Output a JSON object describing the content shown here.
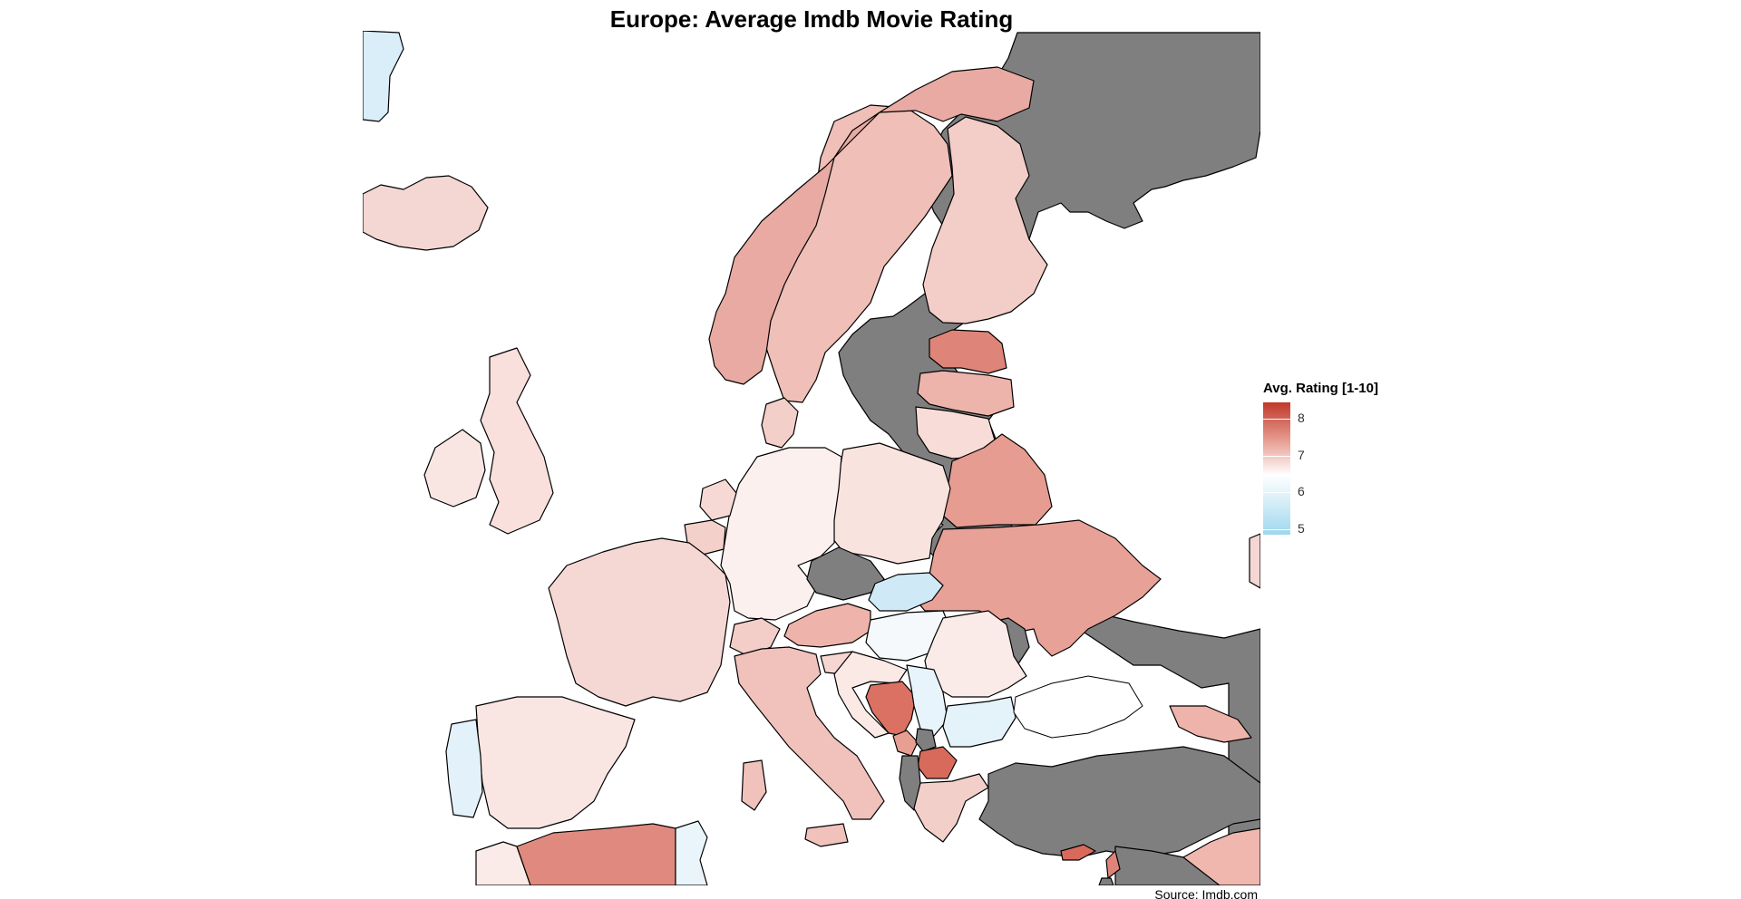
{
  "title": "Europe: Average Imdb Movie Rating",
  "caption": "Source: Imdb.com",
  "legend": {
    "title": "Avg. Rating [1-10]",
    "ticks": [
      {
        "label": "8",
        "value": 8
      },
      {
        "label": "7",
        "value": 7
      },
      {
        "label": "6",
        "value": 6
      },
      {
        "label": "5",
        "value": 5
      }
    ],
    "colors": {
      "high": "#c0392b",
      "mid": "#ffffff",
      "low": "#9fd7ee",
      "no_data": "#7f7f7f"
    }
  },
  "regions": [
    {
      "name": "Greenland (edge)",
      "color": "#d9eef8"
    },
    {
      "name": "Iceland",
      "color": "#f4d6d2"
    },
    {
      "name": "Ireland",
      "color": "#f9e6e3"
    },
    {
      "name": "United Kingdom",
      "color": "#f9e0dc"
    },
    {
      "name": "Norway",
      "color": "#e8aaa2"
    },
    {
      "name": "Sweden",
      "color": "#efbfb8"
    },
    {
      "name": "Finland",
      "color": "#f3cdc7"
    },
    {
      "name": "Russia",
      "color": "#7f7f7f"
    },
    {
      "name": "Estonia",
      "color": "#df8478"
    },
    {
      "name": "Latvia",
      "color": "#edb4ac"
    },
    {
      "name": "Lithuania",
      "color": "#f7dcd7"
    },
    {
      "name": "Belarus",
      "color": "#e69c91"
    },
    {
      "name": "Ukraine",
      "color": "#e8a196"
    },
    {
      "name": "Moldova",
      "color": "#7f7f7f"
    },
    {
      "name": "Poland",
      "color": "#f9e3df"
    },
    {
      "name": "Germany",
      "color": "#fcf0ee"
    },
    {
      "name": "Denmark",
      "color": "#f3cfc9"
    },
    {
      "name": "Netherlands",
      "color": "#f6d9d4"
    },
    {
      "name": "Belgium",
      "color": "#f3d0ca"
    },
    {
      "name": "France",
      "color": "#f5d8d3"
    },
    {
      "name": "Spain",
      "color": "#f9e5e2"
    },
    {
      "name": "Portugal",
      "color": "#e3f2fa"
    },
    {
      "name": "Switzerland",
      "color": "#f3cdc7"
    },
    {
      "name": "Italy",
      "color": "#f0c2bb"
    },
    {
      "name": "Austria",
      "color": "#eeb3aa"
    },
    {
      "name": "Czech Republic",
      "color": "#7f7f7f"
    },
    {
      "name": "Slovakia",
      "color": "#cfe9f6"
    },
    {
      "name": "Hungary",
      "color": "#f5f9fc"
    },
    {
      "name": "Slovenia",
      "color": "#f6d6d1"
    },
    {
      "name": "Croatia",
      "color": "#fbe9e6"
    },
    {
      "name": "Bosnia and Herzegovina",
      "color": "#da7163"
    },
    {
      "name": "Serbia",
      "color": "#e8f4fb"
    },
    {
      "name": "Montenegro",
      "color": "#e79e93"
    },
    {
      "name": "Kosovo",
      "color": "#7f7f7f"
    },
    {
      "name": "North Macedonia",
      "color": "#d86a5c"
    },
    {
      "name": "Albania",
      "color": "#7f7f7f"
    },
    {
      "name": "Greece",
      "color": "#f3cfc9"
    },
    {
      "name": "Bulgaria",
      "color": "#e4f2fa"
    },
    {
      "name": "Romania",
      "color": "#fbebe8"
    },
    {
      "name": "Turkey",
      "color": "#7f7f7f"
    },
    {
      "name": "Georgia",
      "color": "#eeb3aa"
    },
    {
      "name": "Syria",
      "color": "#7f7f7f"
    },
    {
      "name": "Lebanon",
      "color": "#df8478"
    },
    {
      "name": "Israel",
      "color": "#7f7f7f"
    },
    {
      "name": "Iraq",
      "color": "#efb7ae"
    },
    {
      "name": "Cyprus",
      "color": "#d86a5c"
    },
    {
      "name": "Algeria",
      "color": "#e08a7f"
    },
    {
      "name": "Morocco",
      "color": "#fbebe8"
    },
    {
      "name": "Tunisia",
      "color": "#e9f4fb"
    },
    {
      "name": "Kazakhstan (edge)",
      "color": "#f4d6d2"
    }
  ]
}
